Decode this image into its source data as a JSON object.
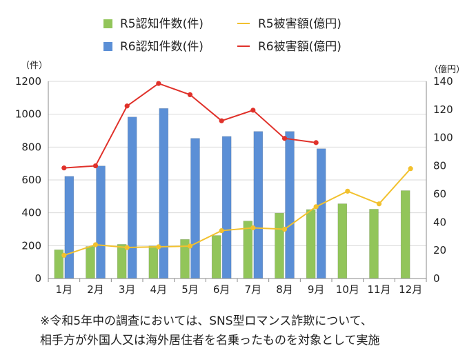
{
  "chart_data": {
    "type": "bar",
    "categories": [
      "1月",
      "2月",
      "3月",
      "4月",
      "5月",
      "6月",
      "7月",
      "8月",
      "9月",
      "10月",
      "11月",
      "12月"
    ],
    "left_axis": {
      "unit_label": "（件）",
      "ylim": [
        0,
        1200
      ],
      "ticks": [
        "0",
        "200",
        "400",
        "600",
        "800",
        "1000",
        "1200"
      ]
    },
    "right_axis": {
      "unit_label": "（億円）",
      "ylim": [
        0,
        140
      ],
      "ticks": [
        "0",
        "20",
        "40",
        "60",
        "80",
        "100",
        "120",
        "140"
      ]
    },
    "grid": true,
    "legend_position": "top",
    "series": [
      {
        "name": "R5認知件数(件)",
        "kind": "bar",
        "axis": "left",
        "color": "#92c55a",
        "values": [
          175,
          195,
          208,
          198,
          238,
          262,
          350,
          398,
          420,
          455,
          422,
          535
        ]
      },
      {
        "name": "R6認知件数(件)",
        "kind": "bar",
        "axis": "left",
        "color": "#5b8fd6",
        "values": [
          622,
          685,
          983,
          1035,
          853,
          865,
          895,
          895,
          790,
          null,
          null,
          null
        ]
      },
      {
        "name": "R5被害額(億円)",
        "kind": "line",
        "axis": "right",
        "color": "#f2c12e",
        "values": [
          16.5,
          24,
          22,
          22.5,
          23,
          34,
          36,
          35,
          51,
          62,
          53,
          78
        ]
      },
      {
        "name": "R6被害額(億円)",
        "kind": "line",
        "axis": "right",
        "color": "#e0312a",
        "values": [
          78.5,
          80,
          122.5,
          138.5,
          130.5,
          112,
          119.5,
          99.5,
          96.5,
          null,
          null,
          null
        ]
      }
    ]
  },
  "footnote": {
    "line1": "※令和5年中の調査においては、SNS型ロマンス詐欺について、",
    "line2": "相手方が外国人又は海外居住者を名乗ったものを対象として実施"
  }
}
